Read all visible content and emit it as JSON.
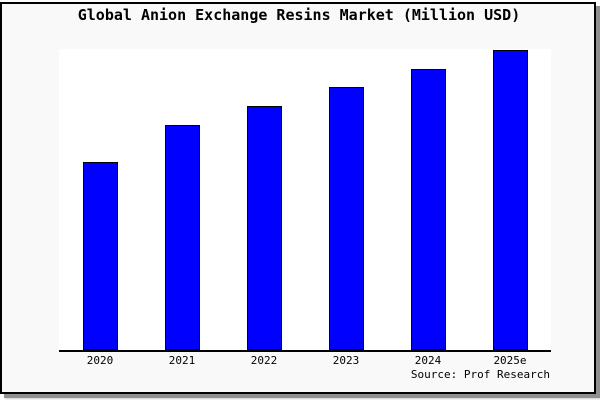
{
  "header": {
    "title": "Global Anion Exchange Resins Market (Million USD)"
  },
  "footer": {
    "source": "Source: Prof Research"
  },
  "colors": {
    "bar_fill": "#0000ff",
    "bar_border": "#000000",
    "card_background": "#f9f9f9",
    "plot_background": "#ffffff",
    "card_border": "#000000",
    "axis_line": "#000000",
    "shadow": "#8f8f8f"
  },
  "chart_data": {
    "type": "bar",
    "title": "Global Anion Exchange Resins Market (Million USD)",
    "categories": [
      "2020",
      "2021",
      "2022",
      "2023",
      "2024",
      "2025e"
    ],
    "values": [
      188,
      225,
      244,
      263,
      281,
      300
    ],
    "value_axis_labeled": false,
    "note": "No y-axis, tick values, gridlines or data labels are shown in the chart; values are relative bar heights in screen pixels read from the image",
    "xlabel": "",
    "ylabel": "",
    "legend": "none",
    "grid": false,
    "bar_color": "#0000ff",
    "bar_border_color": "#000000",
    "source": "Source: Prof Research"
  }
}
